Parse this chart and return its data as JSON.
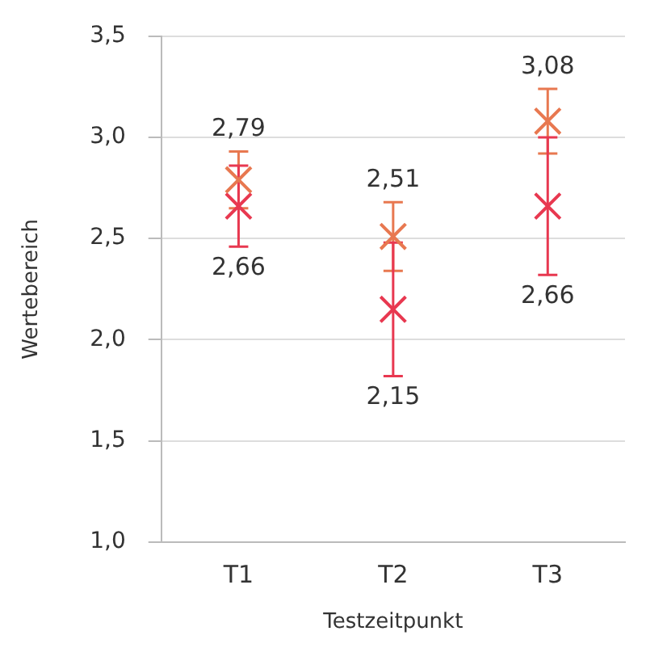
{
  "chart_data": {
    "type": "scatter",
    "xlabel": "Testzeitpunkt",
    "ylabel": "Wertebereich",
    "categories": [
      "T1",
      "T2",
      "T3"
    ],
    "series": [
      {
        "color": "#e87850",
        "values": [
          2.79,
          2.51,
          3.08
        ],
        "errors": [
          0.14,
          0.17,
          0.16
        ],
        "value_labels": [
          "2,79",
          "2,51",
          "3,08"
        ]
      },
      {
        "color": "#e83850",
        "values": [
          2.66,
          2.15,
          2.66
        ],
        "errors": [
          0.2,
          0.33,
          0.34
        ],
        "value_labels": [
          "2,66",
          "2,15",
          "2,66"
        ]
      }
    ],
    "ylim": [
      1.0,
      3.5
    ],
    "yticks": [
      {
        "value": 1.0,
        "label": "1,0"
      },
      {
        "value": 1.5,
        "label": "1,5"
      },
      {
        "value": 2.0,
        "label": "2,0"
      },
      {
        "value": 2.5,
        "label": "2,5"
      },
      {
        "value": 3.0,
        "label": "3,0"
      },
      {
        "value": 3.5,
        "label": "3,5"
      }
    ],
    "grid": "y",
    "marker": "cross",
    "legend": false
  }
}
